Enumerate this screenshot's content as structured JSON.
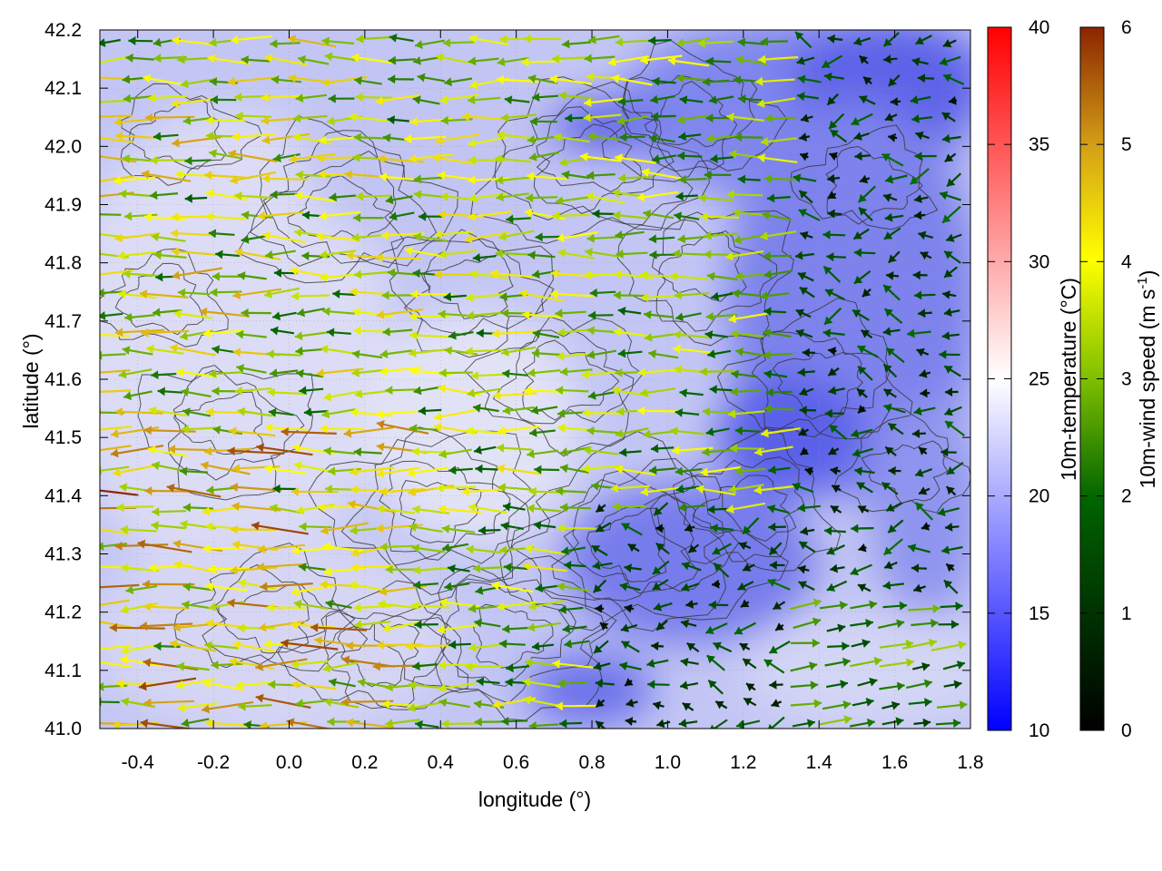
{
  "chart_data": {
    "type": "map",
    "xlabel": "longitude (°)",
    "ylabel": "latitude (°)",
    "xlim": [
      -0.5,
      1.8
    ],
    "ylim": [
      41.0,
      42.2
    ],
    "x_ticks": [
      "-0.4",
      "-0.2",
      "0.0",
      "0.2",
      "0.4",
      "0.6",
      "0.8",
      "1.0",
      "1.2",
      "1.4",
      "1.6",
      "1.8"
    ],
    "y_ticks": [
      "41.0",
      "41.1",
      "41.2",
      "41.3",
      "41.4",
      "41.5",
      "41.6",
      "41.7",
      "41.8",
      "41.9",
      "42.0",
      "42.1",
      "42.2"
    ],
    "grid": true,
    "layers": [
      {
        "name": "10m-temperature",
        "kind": "colour field",
        "note": "cooler (about 12–16 °C) towards the east and north-east, about 18–24 °C over the western and coastal areas"
      },
      {
        "name": "terrain",
        "kind": "contour lines",
        "colour": "#333333"
      },
      {
        "name": "10m-wind",
        "kind": "vectors",
        "colour_by": "wind speed",
        "dominant_direction": "westward over most of the domain, eastward in the south-east corner"
      }
    ],
    "colorbars": [
      {
        "label": "10m-temperature (°C)",
        "range": [
          10,
          40
        ],
        "ticks": [
          "10",
          "15",
          "20",
          "25",
          "30",
          "35",
          "40"
        ],
        "colors": [
          "#0000ff",
          "#ffffff",
          "#ff0000"
        ]
      },
      {
        "label_main": "10m-wind speed (m s",
        "label_sup": "-1",
        "label_end": ")",
        "range": [
          0,
          6
        ],
        "ticks": [
          "0",
          "1",
          "2",
          "3",
          "4",
          "5",
          "6"
        ],
        "colors": [
          "#000000",
          "#006400",
          "#7fbf00",
          "#ffff00",
          "#d4a017",
          "#8b2500"
        ]
      }
    ]
  }
}
